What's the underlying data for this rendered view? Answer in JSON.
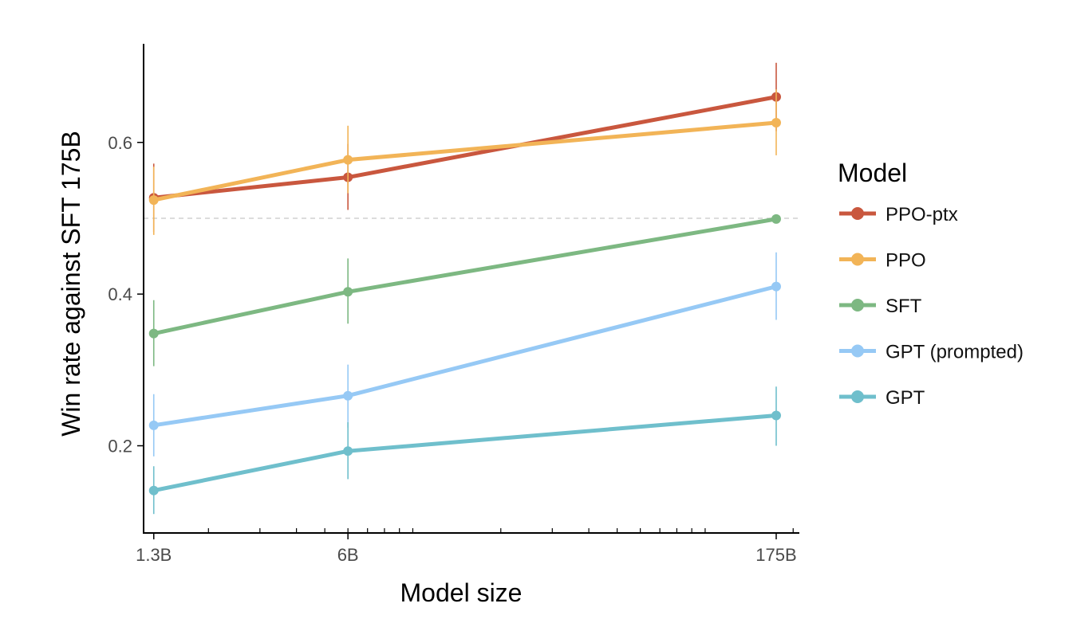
{
  "chart_data": {
    "type": "line",
    "title": "",
    "xlabel": "Model size",
    "ylabel": "Win rate against SFT 175B",
    "x_scale": "log",
    "x": [
      "1.3B",
      "6B",
      "175B"
    ],
    "x_values_billions": [
      1.3,
      6,
      175
    ],
    "xlim_billions": [
      1.2,
      210
    ],
    "ylim": [
      0.085,
      0.73
    ],
    "y_ticks": [
      0.2,
      0.4,
      0.6
    ],
    "y_tick_labels": [
      "0.2",
      "0.4",
      "0.6"
    ],
    "reference_line": {
      "y": 0.5,
      "style": "dashed"
    },
    "grid": false,
    "legend": {
      "title": "Model",
      "position": "right"
    },
    "series": [
      {
        "name": "PPO-ptx",
        "color": "#c9573e",
        "values": [
          0.527,
          0.554,
          0.66
        ],
        "err_low": [
          0.482,
          0.511,
          0.615
        ],
        "err_high": [
          0.572,
          0.598,
          0.705
        ]
      },
      {
        "name": "PPO",
        "color": "#f2b457",
        "values": [
          0.524,
          0.577,
          0.626
        ],
        "err_low": [
          0.478,
          0.533,
          0.583
        ],
        "err_high": [
          0.568,
          0.622,
          0.67
        ]
      },
      {
        "name": "SFT",
        "color": "#7db882",
        "values": [
          0.348,
          0.403,
          0.499
        ],
        "err_low": [
          0.305,
          0.361,
          0.499
        ],
        "err_high": [
          0.392,
          0.447,
          0.499
        ]
      },
      {
        "name": "GPT (prompted)",
        "color": "#96c9f5",
        "values": [
          0.227,
          0.266,
          0.41
        ],
        "err_low": [
          0.186,
          0.224,
          0.366
        ],
        "err_high": [
          0.268,
          0.307,
          0.455
        ]
      },
      {
        "name": "GPT",
        "color": "#6fbfcc",
        "values": [
          0.141,
          0.193,
          0.24
        ],
        "err_low": [
          0.11,
          0.156,
          0.2
        ],
        "err_high": [
          0.173,
          0.231,
          0.278
        ]
      }
    ]
  }
}
